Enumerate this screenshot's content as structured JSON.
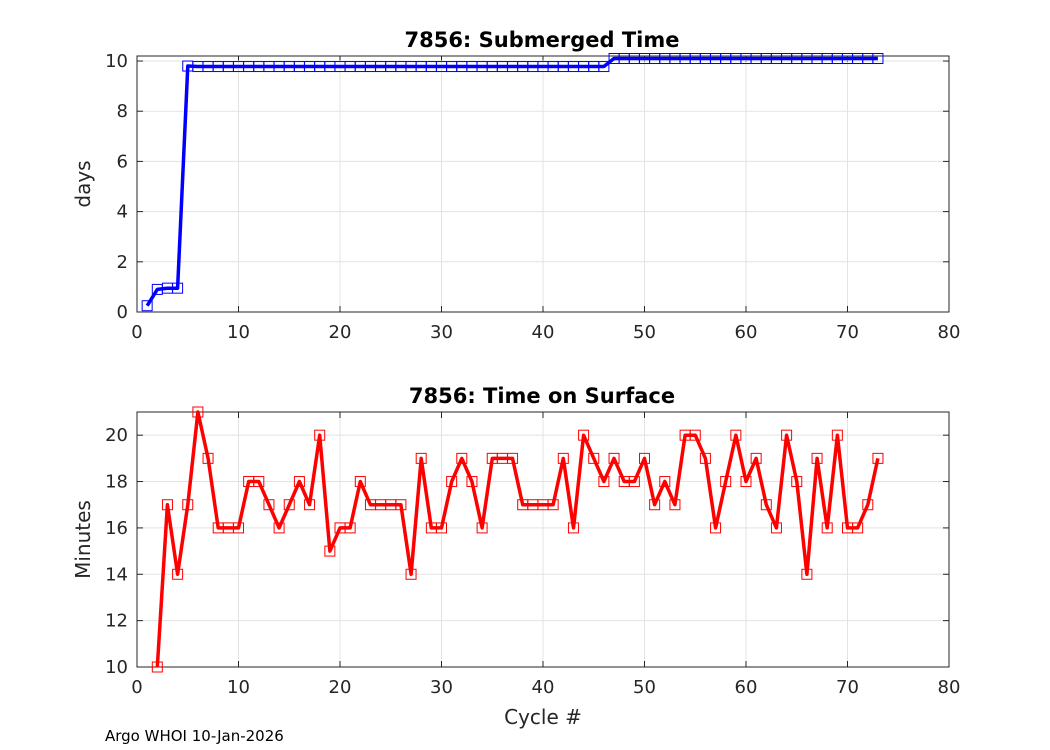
{
  "footer": "Argo WHOI 10-Jan-2026",
  "chart_data": [
    {
      "type": "line",
      "title": "7856: Submerged Time",
      "xlabel": "",
      "ylabel": "days",
      "xlim": [
        0,
        80
      ],
      "ylim": [
        0,
        10.2
      ],
      "xticks": [
        0,
        10,
        20,
        30,
        40,
        50,
        60,
        70,
        80
      ],
      "yticks": [
        0,
        2,
        4,
        6,
        8,
        10
      ],
      "grid": true,
      "color": "#0000ff",
      "marker": "square",
      "series": [
        {
          "x": [
            1,
            2,
            3,
            4,
            5,
            6,
            7,
            8,
            9,
            10,
            11,
            12,
            13,
            14,
            15,
            16,
            17,
            18,
            19,
            20,
            21,
            22,
            23,
            24,
            25,
            26,
            27,
            28,
            29,
            30,
            31,
            32,
            33,
            34,
            35,
            36,
            37,
            38,
            39,
            40,
            41,
            42,
            43,
            44,
            45,
            46,
            47,
            48,
            49,
            50,
            51,
            52,
            53,
            54,
            55,
            56,
            57,
            58,
            59,
            60,
            61,
            62,
            63,
            64,
            65,
            66,
            67,
            68,
            69,
            70,
            71,
            72,
            73
          ],
          "y": [
            0.25,
            0.9,
            0.95,
            0.95,
            9.8,
            9.78,
            9.78,
            9.78,
            9.78,
            9.78,
            9.78,
            9.78,
            9.78,
            9.78,
            9.78,
            9.78,
            9.78,
            9.78,
            9.78,
            9.78,
            9.78,
            9.78,
            9.78,
            9.78,
            9.78,
            9.78,
            9.78,
            9.78,
            9.78,
            9.78,
            9.78,
            9.78,
            9.78,
            9.78,
            9.78,
            9.78,
            9.78,
            9.78,
            9.78,
            9.78,
            9.78,
            9.78,
            9.78,
            9.78,
            9.78,
            9.78,
            10.1,
            10.1,
            10.1,
            10.1,
            10.1,
            10.1,
            10.1,
            10.1,
            10.1,
            10.1,
            10.1,
            10.1,
            10.1,
            10.1,
            10.1,
            10.1,
            10.1,
            10.1,
            10.1,
            10.1,
            10.1,
            10.1,
            10.1,
            10.1,
            10.1,
            10.1,
            10.1
          ]
        }
      ]
    },
    {
      "type": "line",
      "title": "7856: Time on Surface",
      "xlabel": "Cycle #",
      "ylabel": "Minutes",
      "xlim": [
        0,
        80
      ],
      "ylim": [
        10,
        21
      ],
      "xticks": [
        0,
        10,
        20,
        30,
        40,
        50,
        60,
        70,
        80
      ],
      "yticks": [
        10,
        12,
        14,
        16,
        18,
        20
      ],
      "grid": true,
      "color": "#ff0000",
      "marker": "square",
      "series": [
        {
          "x": [
            2,
            3,
            4,
            5,
            6,
            7,
            8,
            9,
            10,
            11,
            12,
            13,
            14,
            15,
            16,
            17,
            18,
            19,
            20,
            21,
            22,
            23,
            24,
            25,
            26,
            27,
            28,
            29,
            30,
            31,
            32,
            33,
            34,
            35,
            36,
            37,
            38,
            39,
            40,
            41,
            42,
            43,
            44,
            45,
            46,
            47,
            48,
            49,
            50,
            51,
            52,
            53,
            54,
            55,
            56,
            57,
            58,
            59,
            60,
            61,
            62,
            63,
            64,
            65,
            66,
            67,
            68,
            69,
            70,
            71,
            72,
            73
          ],
          "y": [
            10,
            17,
            14,
            17,
            21,
            19,
            16,
            16,
            16,
            18,
            18,
            17,
            16,
            17,
            18,
            17,
            20,
            15,
            16,
            16,
            18,
            17,
            17,
            17,
            17,
            14,
            19,
            16,
            16,
            18,
            19,
            18,
            16,
            19,
            19,
            19,
            17,
            17,
            17,
            17,
            19,
            16,
            20,
            19,
            18,
            19,
            18,
            18,
            19,
            17,
            18,
            17,
            20,
            20,
            19,
            16,
            18,
            20,
            18,
            19,
            17,
            16,
            20,
            18,
            14,
            19,
            16,
            20,
            16,
            16,
            17,
            19
          ]
        }
      ]
    }
  ]
}
